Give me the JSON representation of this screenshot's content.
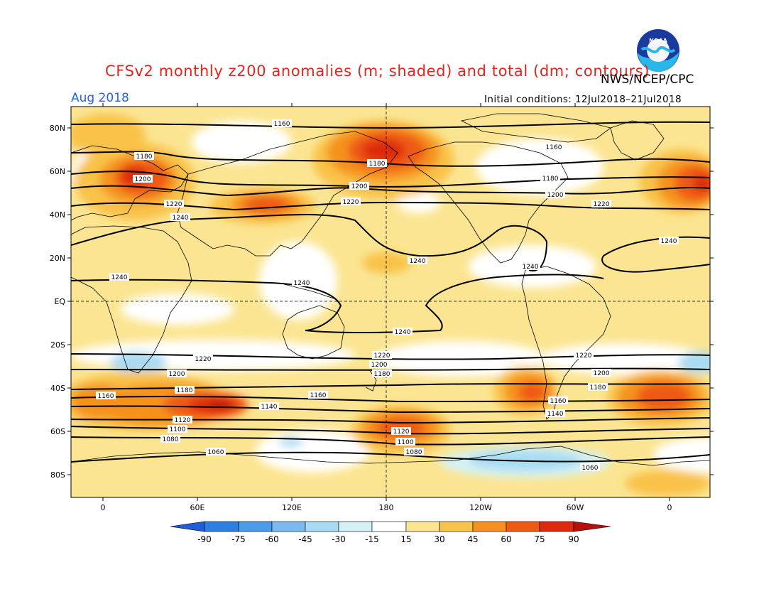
{
  "header": {
    "title": "CFSv2 monthly z200 anomalies (m; shaded) and total (dm; contours)",
    "agency": "NWS/NCEP/CPC",
    "month": "Aug 2018",
    "initial_conditions": "Initial conditions: 12Jul2018–21Jul2018",
    "logo_text": "NOAA"
  },
  "axes": {
    "lat_labels": [
      "80N",
      "60N",
      "40N",
      "20N",
      "EQ",
      "20S",
      "40S",
      "60S",
      "80S"
    ],
    "lon_labels": [
      "0",
      "60E",
      "120E",
      "180",
      "120W",
      "60W",
      "0"
    ]
  },
  "colorbar": {
    "labels": [
      "-90",
      "-75",
      "-60",
      "-45",
      "-30",
      "-15",
      "15",
      "30",
      "45",
      "60",
      "75",
      "90"
    ],
    "colors": {
      "n90": "#1e5fd9",
      "n75": "#2d7fe0",
      "n60": "#4a9be8",
      "n45": "#7bbaf0",
      "n30": "#a8dbf4",
      "n15": "#d4f2f6",
      "zero": "#ffffff",
      "p15": "#fbe592",
      "p30": "#f9c24a",
      "p45": "#f5921f",
      "p60": "#ee5a14",
      "p75": "#dd2a0f",
      "p90": "#b8100a"
    }
  },
  "contours": [
    {
      "value": "1060"
    },
    {
      "value": "1080"
    },
    {
      "value": "1100"
    },
    {
      "value": "1120"
    },
    {
      "value": "1140"
    },
    {
      "value": "1160"
    },
    {
      "value": "1180"
    },
    {
      "value": "1200"
    },
    {
      "value": "1220"
    },
    {
      "value": "1240"
    }
  ],
  "contour_label_instances": {
    "nh_1160_a": "1160",
    "nh_1160_b": "1160",
    "nh_1180_a": "1180",
    "nh_1180_b": "1180",
    "nh_1180_c": "1180",
    "nh_1200_a": "1200",
    "nh_1200_b": "1200",
    "nh_1200_c": "1200",
    "nh_1220_a": "1220",
    "nh_1220_b": "1220",
    "nh_1220_c": "1220",
    "nh_1240_a": "1240",
    "nh_1240_b": "1240",
    "nh_1240_c": "1240",
    "nh_1240_d": "1240",
    "nh_1240_e": "1240",
    "nh_1240_f": "1240",
    "sh_1220_a": "1220",
    "sh_1220_b": "1220",
    "sh_1220_c": "1220",
    "sh_1200_a": "1200",
    "sh_1200_b": "1200",
    "sh_1200_c": "1200",
    "sh_1180_a": "1180",
    "sh_1180_b": "1180",
    "sh_1180_c": "1180",
    "sh_1160_a": "1160",
    "sh_1160_b": "1160",
    "sh_1160_c": "1160",
    "sh_1140_a": "1140",
    "sh_1140_b": "1140",
    "sh_1120_a": "1120",
    "sh_1120_b": "1120",
    "sh_1100_a": "1100",
    "sh_1100_b": "1100",
    "sh_1080_a": "1080",
    "sh_1080_b": "1080",
    "sh_1060_a": "1060",
    "sh_1060_b": "1060"
  }
}
